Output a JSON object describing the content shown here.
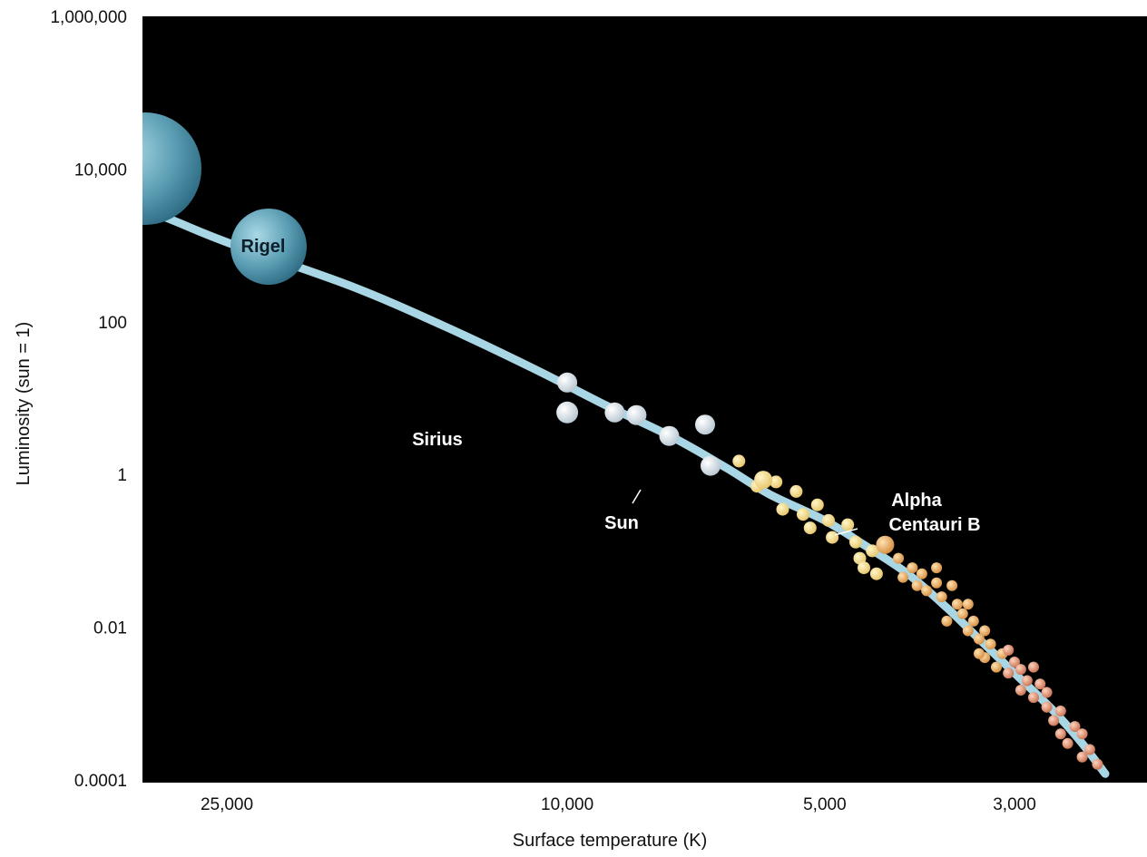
{
  "chart_data": {
    "type": "scatter",
    "title": "",
    "xlabel": "Surface temperature (K)",
    "ylabel": "Luminosity (sun = 1)",
    "x_scale": "log",
    "x_direction": "reversed",
    "y_scale": "log",
    "xlim": [
      40000,
      2250
    ],
    "ylim": [
      0.0001,
      1000000
    ],
    "x_ticks": [
      {
        "value": 25000,
        "label": "25,000"
      },
      {
        "value": 10000,
        "label": "10,000"
      },
      {
        "value": 5000,
        "label": "5,000"
      },
      {
        "value": 3000,
        "label": "3,000"
      }
    ],
    "y_ticks": [
      {
        "value": 1000000,
        "label": "1,000,000"
      },
      {
        "value": 10000,
        "label": "10,000"
      },
      {
        "value": 100,
        "label": "100"
      },
      {
        "value": 1,
        "label": "1"
      },
      {
        "value": 0.01,
        "label": "0.01"
      },
      {
        "value": 0.0001,
        "label": "0.0001"
      }
    ],
    "background": "#000000",
    "grid": false,
    "main_sequence_curve": [
      [
        40000,
        8000
      ],
      [
        30000,
        2500
      ],
      [
        25000,
        1100
      ],
      [
        18000,
        300
      ],
      [
        14000,
        90
      ],
      [
        11000,
        25
      ],
      [
        9000,
        8
      ],
      [
        7500,
        3
      ],
      [
        6500,
        1.2
      ],
      [
        5800,
        0.55
      ],
      [
        5000,
        0.25
      ],
      [
        4500,
        0.12
      ],
      [
        4000,
        0.05
      ],
      [
        3600,
        0.018
      ],
      [
        3300,
        0.007
      ],
      [
        3000,
        0.0025
      ],
      [
        2700,
        0.0008
      ],
      [
        2500,
        0.0003
      ],
      [
        2350,
        0.00012
      ]
    ],
    "named_stars": [
      {
        "name": "",
        "temp": 40000,
        "lum": 9000,
        "radius": 62,
        "color": "#5b9db3"
      },
      {
        "name": "Rigel",
        "temp": 22000,
        "lum": 950,
        "radius": 42,
        "color": "#5b9db3"
      },
      {
        "name": "Sirius",
        "temp": 10000,
        "lum": 6.5,
        "radius": 12,
        "color": "#dfe8ee"
      },
      {
        "name": "Sun",
        "temp": 5900,
        "lum": 0.85,
        "radius": 10,
        "color": "#f3e49a"
      },
      {
        "name": "Alpha Centauri B",
        "temp": 4250,
        "lum": 0.12,
        "radius": 10,
        "color": "#f0c060"
      }
    ],
    "star_labels": {
      "rigel": "Rigel",
      "sirius": "Sirius",
      "sun": "Sun",
      "alpha1": "Alpha",
      "alpha2": "Centauri B"
    },
    "points": [
      {
        "temp": 10000,
        "lum": 16
      },
      {
        "temp": 8800,
        "lum": 6.5
      },
      {
        "temp": 8300,
        "lum": 6
      },
      {
        "temp": 7600,
        "lum": 3.2
      },
      {
        "temp": 6900,
        "lum": 4.5
      },
      {
        "temp": 6800,
        "lum": 1.3
      },
      {
        "temp": 6300,
        "lum": 1.5
      },
      {
        "temp": 6000,
        "lum": 0.7
      },
      {
        "temp": 5700,
        "lum": 0.8
      },
      {
        "temp": 5600,
        "lum": 0.35
      },
      {
        "temp": 5400,
        "lum": 0.6
      },
      {
        "temp": 5300,
        "lum": 0.3
      },
      {
        "temp": 5100,
        "lum": 0.4
      },
      {
        "temp": 5200,
        "lum": 0.2
      },
      {
        "temp": 4950,
        "lum": 0.25
      },
      {
        "temp": 4900,
        "lum": 0.15
      },
      {
        "temp": 4700,
        "lum": 0.22
      },
      {
        "temp": 4600,
        "lum": 0.13
      },
      {
        "temp": 4550,
        "lum": 0.08
      },
      {
        "temp": 4500,
        "lum": 0.06
      },
      {
        "temp": 4400,
        "lum": 0.1
      },
      {
        "temp": 4350,
        "lum": 0.05
      },
      {
        "temp": 4100,
        "lum": 0.08
      },
      {
        "temp": 4050,
        "lum": 0.045
      },
      {
        "temp": 3950,
        "lum": 0.06
      },
      {
        "temp": 3850,
        "lum": 0.05
      },
      {
        "temp": 3800,
        "lum": 0.03
      },
      {
        "temp": 3700,
        "lum": 0.038
      },
      {
        "temp": 3650,
        "lum": 0.025
      },
      {
        "temp": 3550,
        "lum": 0.035
      },
      {
        "temp": 3500,
        "lum": 0.02
      },
      {
        "temp": 3450,
        "lum": 0.015
      },
      {
        "temp": 3400,
        "lum": 0.009
      },
      {
        "temp": 3350,
        "lum": 0.012
      },
      {
        "temp": 3300,
        "lum": 0.007
      },
      {
        "temp": 3250,
        "lum": 0.004
      },
      {
        "temp": 3200,
        "lum": 0.006
      },
      {
        "temp": 3150,
        "lum": 0.003
      },
      {
        "temp": 3100,
        "lum": 0.0045
      },
      {
        "temp": 3050,
        "lum": 0.0025
      },
      {
        "temp": 3000,
        "lum": 0.0035
      },
      {
        "temp": 2950,
        "lum": 0.0015
      },
      {
        "temp": 2900,
        "lum": 0.002
      },
      {
        "temp": 2850,
        "lum": 0.0012
      },
      {
        "temp": 2800,
        "lum": 0.0018
      },
      {
        "temp": 2750,
        "lum": 0.0009
      },
      {
        "temp": 2700,
        "lum": 0.0006
      },
      {
        "temp": 2650,
        "lum": 0.0004
      },
      {
        "temp": 2600,
        "lum": 0.0003
      },
      {
        "temp": 2550,
        "lum": 0.0005
      },
      {
        "temp": 2500,
        "lum": 0.0002
      },
      {
        "temp": 2450,
        "lum": 0.00025
      },
      {
        "temp": 2400,
        "lum": 0.00016
      },
      {
        "temp": 3700,
        "lum": 0.06
      },
      {
        "temp": 3400,
        "lum": 0.02
      },
      {
        "temp": 3250,
        "lum": 0.009
      },
      {
        "temp": 3050,
        "lum": 0.005
      },
      {
        "temp": 2850,
        "lum": 0.003
      },
      {
        "temp": 2650,
        "lum": 0.0008
      },
      {
        "temp": 2500,
        "lum": 0.0004
      },
      {
        "temp": 3900,
        "lum": 0.035
      },
      {
        "temp": 3600,
        "lum": 0.012
      },
      {
        "temp": 3300,
        "lum": 0.0045
      },
      {
        "temp": 2950,
        "lum": 0.0028
      },
      {
        "temp": 2750,
        "lum": 0.0014
      }
    ]
  }
}
